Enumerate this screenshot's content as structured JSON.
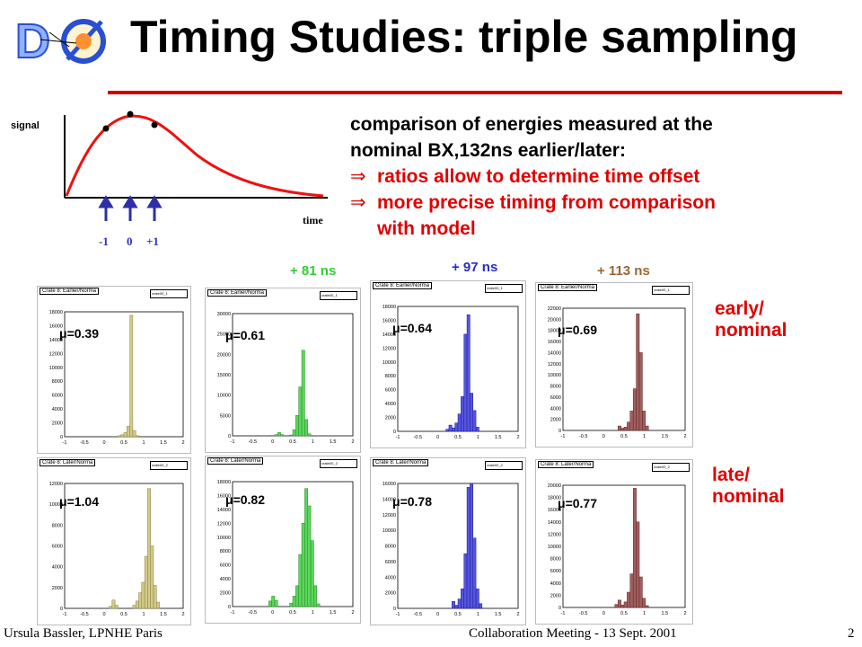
{
  "title": "Timing Studies: triple sampling",
  "logo": {
    "icon": "dzero-logo-icon"
  },
  "sketch": {
    "signal_label": "signal",
    "time_label": "time",
    "ticks": [
      "-1",
      "0",
      "+1"
    ]
  },
  "text": {
    "line1": "comparison of energies measured at the",
    "line2": "nominal BX,132ns earlier/later:",
    "bullet1": "ratios allow to determine time offset",
    "bullet2a": "more precise timing from comparison",
    "bullet2b": "with model",
    "arrow": "⇒"
  },
  "offsets": [
    {
      "label": "+ 81 ns",
      "color": "#33cc33"
    },
    {
      "label": "+ 97 ns",
      "color": "#2b2bcc"
    },
    {
      "label": "+ 113 ns",
      "color": "#996633"
    }
  ],
  "rows": [
    {
      "label_a": "early/",
      "label_b": "nominal"
    },
    {
      "label_a": "late/",
      "label_b": "nominal"
    }
  ],
  "histograms": [
    {
      "tag": "Crate 8: Earlier/Norma",
      "name": "crate00_1",
      "mu": "μ=0.39",
      "color": "#d2c98a",
      "stroke": "#8a8040",
      "ymax": 18000,
      "yticks": [
        "18000",
        "16000",
        "14000",
        "12000",
        "10000",
        "8000",
        "6000",
        "4000",
        "2000",
        "0"
      ],
      "values": [
        0,
        0,
        0,
        0,
        0,
        0,
        0,
        0,
        0,
        0,
        0,
        0,
        0,
        0,
        0,
        0,
        0,
        0,
        150,
        300,
        600,
        1500,
        17500,
        900,
        150,
        0,
        0,
        0,
        0,
        0,
        0,
        0,
        0,
        0,
        0,
        0,
        0,
        0,
        0,
        0
      ]
    },
    {
      "tag": "Crate 8: Earlier/Norma",
      "name": "crate00_1",
      "mu": "μ=0.61",
      "color": "#5cd65c",
      "stroke": "#208a20",
      "ymax": 30000,
      "yticks": [
        "30000",
        "25000",
        "20000",
        "15000",
        "10000",
        "5000",
        "0"
      ],
      "values": [
        0,
        0,
        0,
        0,
        0,
        0,
        0,
        0,
        0,
        0,
        0,
        0,
        0,
        0,
        300,
        800,
        300,
        0,
        0,
        200,
        1500,
        5000,
        12000,
        21000,
        4000,
        500,
        0,
        0,
        0,
        0,
        0,
        0,
        0,
        0,
        0,
        0,
        0,
        0,
        0,
        0
      ]
    },
    {
      "tag": "Crate 8: Earlier/Norma",
      "name": "crate00_1",
      "mu": "μ=0.64",
      "color": "#5555e0",
      "stroke": "#1a1a90",
      "ymax": 18000,
      "yticks": [
        "18000",
        "16000",
        "14000",
        "12000",
        "10000",
        "8000",
        "6000",
        "4000",
        "2000",
        "0"
      ],
      "values": [
        0,
        0,
        0,
        0,
        0,
        0,
        0,
        0,
        0,
        0,
        0,
        0,
        0,
        0,
        0,
        0,
        300,
        900,
        500,
        1200,
        2500,
        5000,
        14000,
        16800,
        5500,
        3000,
        600,
        0,
        0,
        0,
        0,
        0,
        0,
        0,
        0,
        0,
        0,
        0,
        0,
        0
      ]
    },
    {
      "tag": "Crate 8: Earlier/Norma",
      "name": "crate00_1",
      "mu": "μ=0.69",
      "color": "#a06060",
      "stroke": "#602020",
      "ymax": 22000,
      "yticks": [
        "22000",
        "20000",
        "18000",
        "16000",
        "14000",
        "12000",
        "10000",
        "8000",
        "6000",
        "4000",
        "2000",
        "0"
      ],
      "values": [
        0,
        0,
        0,
        0,
        0,
        0,
        0,
        0,
        0,
        0,
        0,
        0,
        0,
        0,
        0,
        0,
        0,
        0,
        800,
        400,
        600,
        1500,
        3500,
        7500,
        21000,
        14000,
        3500,
        800,
        0,
        0,
        0,
        0,
        0,
        0,
        0,
        0,
        0,
        0,
        0,
        0
      ]
    },
    {
      "tag": "Crate 8: Later/Norma",
      "name": "crate00_2",
      "mu": "μ=1.04",
      "color": "#d2c98a",
      "stroke": "#8a8040",
      "ymax": 12000,
      "yticks": [
        "12000",
        "10000",
        "8000",
        "6000",
        "4000",
        "2000",
        "0"
      ],
      "values": [
        0,
        0,
        0,
        0,
        0,
        0,
        0,
        0,
        0,
        0,
        0,
        0,
        0,
        0,
        0,
        200,
        800,
        300,
        0,
        0,
        0,
        0,
        0,
        300,
        700,
        1500,
        2500,
        5000,
        11500,
        6000,
        2200,
        600,
        0,
        0,
        0,
        0,
        0,
        0,
        0,
        0
      ]
    },
    {
      "tag": "Crate 8: Later/Norma",
      "name": "crate00_2",
      "mu": "μ=0.82",
      "color": "#5cd65c",
      "stroke": "#208a20",
      "ymax": 18000,
      "yticks": [
        "18000",
        "16000",
        "14000",
        "12000",
        "10000",
        "8000",
        "6000",
        "4000",
        "2000",
        "0"
      ],
      "values": [
        0,
        0,
        0,
        0,
        0,
        0,
        0,
        0,
        0,
        0,
        0,
        0,
        800,
        1500,
        900,
        0,
        0,
        0,
        0,
        500,
        1500,
        3000,
        7500,
        12000,
        17000,
        14500,
        9500,
        3000,
        400,
        0,
        0,
        0,
        0,
        0,
        0,
        0,
        0,
        0,
        0,
        0
      ]
    },
    {
      "tag": "Crate 8: Later/Norma",
      "name": "crate00_2",
      "mu": "μ=0.78",
      "color": "#5555e0",
      "stroke": "#1a1a90",
      "ymax": 18000,
      "yticks": [
        "16000",
        "14000",
        "12000",
        "10000",
        "8000",
        "6000",
        "4000",
        "2000",
        "0"
      ],
      "values": [
        0,
        0,
        0,
        0,
        0,
        0,
        0,
        0,
        0,
        0,
        0,
        0,
        0,
        0,
        0,
        0,
        0,
        0,
        900,
        400,
        1200,
        2500,
        7000,
        15500,
        17000,
        9000,
        2500,
        600,
        0,
        0,
        0,
        0,
        0,
        0,
        0,
        0,
        0,
        0,
        0,
        0
      ]
    },
    {
      "tag": "Crate 8: Later/Norma",
      "name": "crate00_2",
      "mu": "μ=0.77",
      "color": "#a06060",
      "stroke": "#602020",
      "ymax": 20000,
      "yticks": [
        "20000",
        "18000",
        "16000",
        "14000",
        "12000",
        "10000",
        "8000",
        "6000",
        "4000",
        "2000",
        "0"
      ],
      "values": [
        0,
        0,
        0,
        0,
        0,
        0,
        0,
        0,
        0,
        0,
        0,
        0,
        0,
        0,
        0,
        0,
        0,
        500,
        1200,
        400,
        900,
        2500,
        5500,
        19500,
        14000,
        5000,
        1500,
        300,
        0,
        0,
        0,
        0,
        0,
        0,
        0,
        0,
        0,
        0,
        0,
        0
      ]
    }
  ],
  "xticks": [
    "-1",
    "-0.5",
    "0",
    "0.5",
    "1",
    "1.5",
    "2"
  ],
  "footer": {
    "left": "Ursula Bassler, LPNHE Paris",
    "center": "Collaboration Meeting - 13 Sept. 2001",
    "page": "2"
  }
}
